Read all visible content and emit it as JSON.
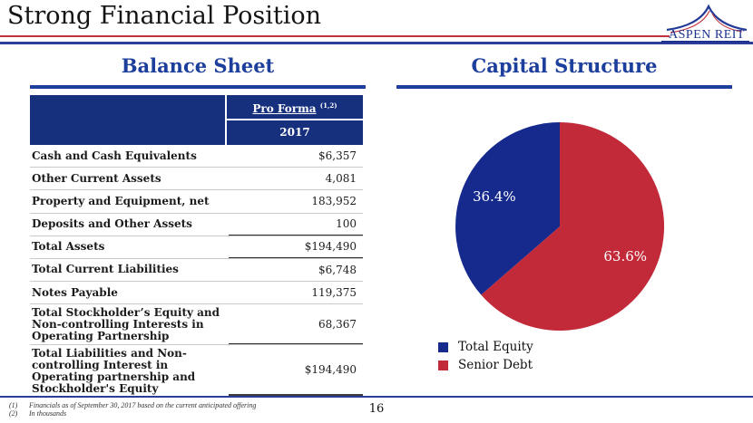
{
  "header": {
    "title": "Strong Financial Position",
    "logo_text": "ASPEN REIT"
  },
  "balance_sheet": {
    "title": "Balance Sheet",
    "col_header": {
      "line1": "Pro Forma",
      "superscript": "(1,2)",
      "line2": "2017"
    },
    "rows": [
      {
        "label": "Cash and Cash Equivalents",
        "value": "$6,357"
      },
      {
        "label": "Other Current Assets",
        "value": "4,081"
      },
      {
        "label": "Property and Equipment, net",
        "value": "183,952"
      },
      {
        "label": "Deposits and Other Assets",
        "value": "100"
      },
      {
        "label": "Total Assets",
        "value": "$194,490"
      },
      {
        "label": "Total Current Liabilities",
        "value": "$6,748"
      },
      {
        "label": "Notes Payable",
        "value": "119,375"
      },
      {
        "label": "Total Stockholder’s Equity and Non-controlling Interests in Operating Partnership",
        "value": "68,367"
      },
      {
        "label": "Total Liabilities and  Non-controlling Interest in Operating partnership and Stockholder's Equity",
        "value": "$194,490"
      }
    ]
  },
  "capital_structure": {
    "title": "Capital Structure"
  },
  "chart_data": {
    "type": "pie",
    "title": "Capital Structure",
    "slices_clockwise_from_top": [
      {
        "label": "Senior Debt",
        "value": 63.6,
        "data_label": "63.6%",
        "color": "#c22a3a"
      },
      {
        "label": "Total Equity",
        "value": 36.4,
        "data_label": "36.4%",
        "color": "#152a8c"
      }
    ],
    "legend": [
      {
        "label": "Total Equity",
        "color": "#152a8c"
      },
      {
        "label": "Senior Debt",
        "color": "#c22a3a"
      }
    ],
    "legend_position": "bottom-left"
  },
  "footer": {
    "footnotes": [
      {
        "marker": "(1)",
        "text": "Financials as of September 30, 2017 based on the current anticipated offering"
      },
      {
        "marker": "(2)",
        "text": "In thousands"
      }
    ],
    "page_number": "16"
  }
}
